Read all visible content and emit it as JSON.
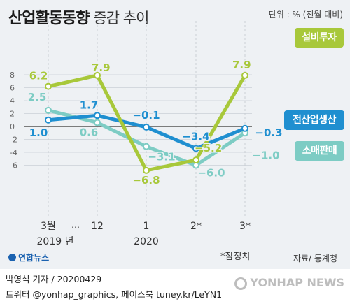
{
  "header": {
    "title_main": "산업활동동향",
    "title_sub": "증감 추이",
    "unit": "단위 : % (전월 대비)"
  },
  "footnote": "*잠정치",
  "source": "자료/ 통계청",
  "logo_text": "연합뉴스",
  "credit": {
    "line1": "박영석 기자 / 20200429",
    "line2": "트위터 @yonhap_graphics, 페이스북 tuney.kr/LeYN1"
  },
  "watermark": "YONHAP NEWS",
  "chart_data": {
    "type": "line",
    "x_labels": [
      "3월",
      "12",
      "1",
      "2*",
      "3*"
    ],
    "x_ellipsis": "…",
    "year_labels": [
      "2019 년",
      "2020"
    ],
    "y_ticks": [
      8,
      6,
      4,
      2,
      0,
      -2,
      -4,
      -6
    ],
    "ylim": [
      -7.5,
      8.5
    ],
    "series": [
      {
        "name": "설비투자",
        "color": "#a8c83a",
        "values": [
          6.2,
          7.9,
          -6.8,
          -5.2,
          7.9
        ],
        "labels": [
          "6.2",
          "7.9",
          "−6.8",
          "−5.2",
          "7.9"
        ]
      },
      {
        "name": "전산업생산",
        "color": "#1f8fd0",
        "values": [
          1.0,
          1.7,
          -0.1,
          -3.4,
          -0.3
        ],
        "labels": [
          "1.0",
          "1.7",
          "−0.1",
          "−3.4",
          "−0.3"
        ]
      },
      {
        "name": "소매판매",
        "color": "#7dccc4",
        "values": [
          2.5,
          0.6,
          -3.1,
          -6.0,
          -1.0
        ],
        "labels": [
          "2.5",
          "0.6",
          "−3.1",
          "−6.0",
          "−1.0"
        ]
      }
    ]
  }
}
